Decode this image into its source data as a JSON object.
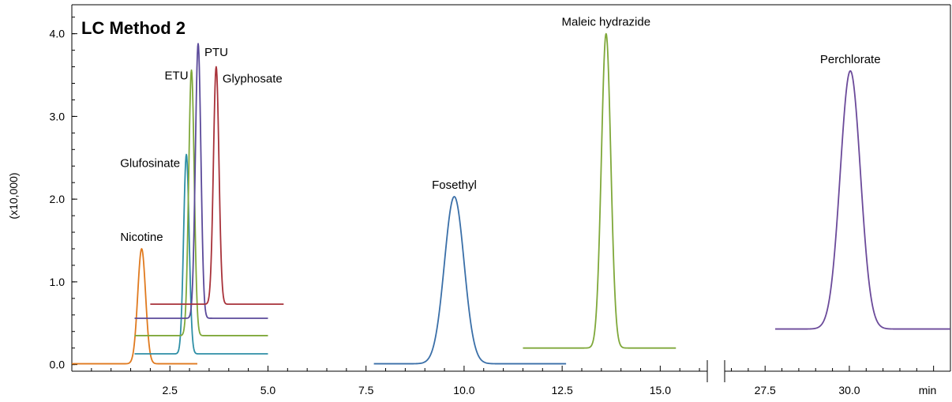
{
  "chart_data": {
    "type": "line",
    "title": "LC Method 2",
    "ylabel": "(x10,000)",
    "x_unit_label": "min",
    "ylim": [
      -0.08,
      4.35
    ],
    "y_ticks": [
      "0.0",
      "1.0",
      "2.0",
      "3.0",
      "4.0"
    ],
    "x_segments": [
      {
        "xlim": [
          0.0,
          16.2
        ],
        "ticks": [
          "2.5",
          "5.0",
          "7.5",
          "10.0",
          "12.5",
          "15.0"
        ]
      },
      {
        "xlim": [
          26.3,
          33.0
        ],
        "ticks": [
          "27.5",
          "30.0"
        ]
      }
    ],
    "axis_break": true,
    "series": [
      {
        "name": "Nicotine",
        "color": "#E07A1F",
        "segment": 0,
        "x_range": [
          0.0,
          3.2
        ],
        "baseline": 0.01,
        "peaks": [
          {
            "x": 1.78,
            "height": 1.39,
            "sigma": 0.1
          }
        ]
      },
      {
        "name": "Glufosinate",
        "color": "#2E8FA6",
        "segment": 0,
        "x_range": [
          1.6,
          5.0
        ],
        "baseline": 0.13,
        "peaks": [
          {
            "x": 2.92,
            "height": 2.41,
            "sigma": 0.07
          }
        ]
      },
      {
        "name": "ETU",
        "color": "#7FA83A",
        "segment": 0,
        "x_range": [
          1.6,
          5.0
        ],
        "baseline": 0.35,
        "peaks": [
          {
            "x": 3.05,
            "height": 3.21,
            "sigma": 0.07
          }
        ]
      },
      {
        "name": "PTU",
        "color": "#5B4A9A",
        "segment": 0,
        "x_range": [
          1.6,
          5.0
        ],
        "baseline": 0.56,
        "peaks": [
          {
            "x": 3.22,
            "height": 3.32,
            "sigma": 0.07
          }
        ]
      },
      {
        "name": "Glyphosate",
        "color": "#A8323A",
        "segment": 0,
        "x_range": [
          2.0,
          5.4
        ],
        "baseline": 0.73,
        "peaks": [
          {
            "x": 3.68,
            "height": 2.87,
            "sigma": 0.07
          }
        ]
      },
      {
        "name": "Fosethyl",
        "color": "#3A6FA8",
        "segment": 0,
        "x_range": [
          7.7,
          12.6
        ],
        "baseline": 0.01,
        "peaks": [
          {
            "x": 9.75,
            "height": 2.02,
            "sigma": 0.25
          }
        ]
      },
      {
        "name": "Maleic hydrazide",
        "color": "#7FA83A",
        "segment": 0,
        "x_range": [
          11.5,
          15.4
        ],
        "baseline": 0.2,
        "peaks": [
          {
            "x": 13.62,
            "height": 3.8,
            "sigma": 0.12
          }
        ]
      },
      {
        "name": "Perchlorate",
        "color": "#6B4A9A",
        "segment": 1,
        "x_range": [
          27.8,
          33.0
        ],
        "baseline": 0.43,
        "peaks": [
          {
            "x": 30.03,
            "height": 3.12,
            "sigma": 0.3
          }
        ]
      }
    ]
  }
}
